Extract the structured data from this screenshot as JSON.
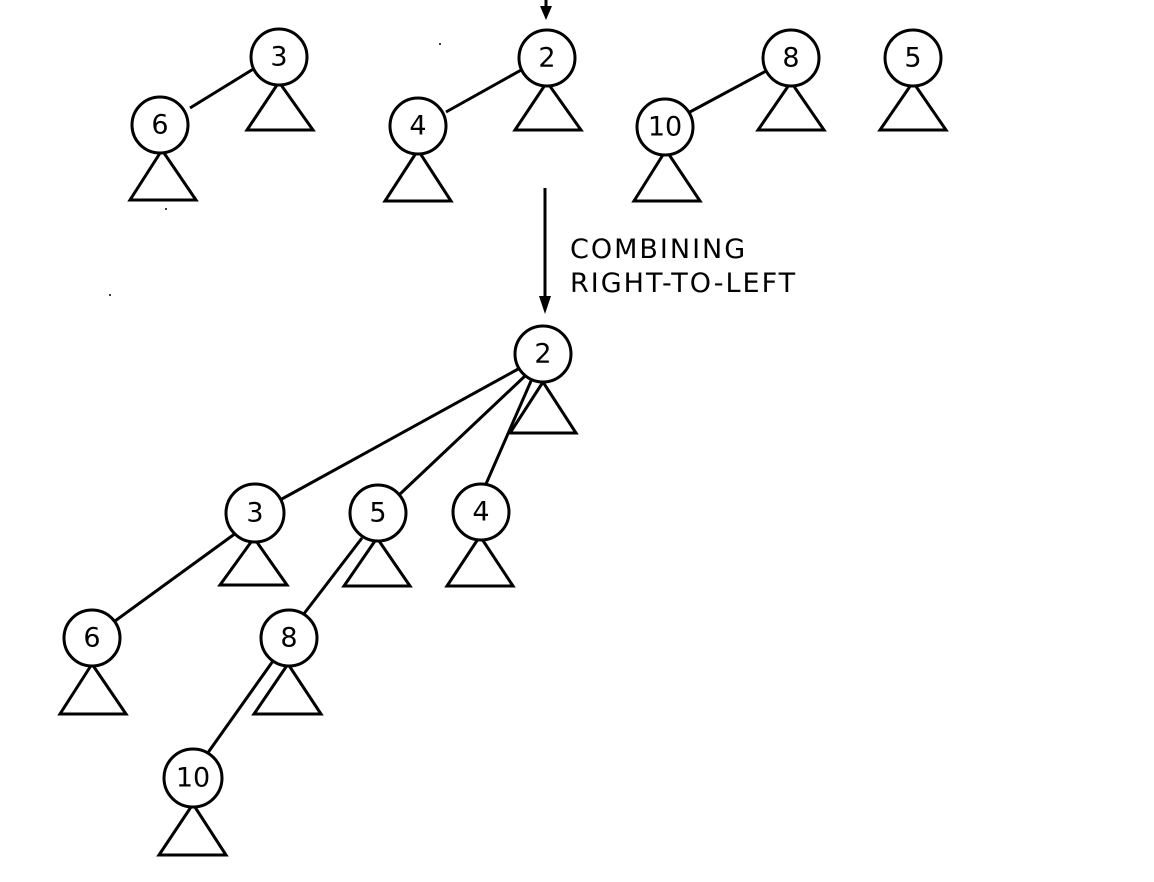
{
  "caption": {
    "line1": "COMBINING",
    "line2": "RIGHT-TO-LEFT"
  },
  "top_row": {
    "trees": [
      {
        "root": "3",
        "child": "6"
      },
      {
        "root": "2",
        "child": "4"
      },
      {
        "root": "8",
        "child": "10"
      },
      {
        "root": "5"
      }
    ]
  },
  "result_tree": {
    "root": "2",
    "children": [
      {
        "key": "3",
        "children": [
          {
            "key": "6"
          }
        ]
      },
      {
        "key": "5",
        "children": [
          {
            "key": "8",
            "children": [
              {
                "key": "10"
              }
            ]
          }
        ]
      },
      {
        "key": "4"
      }
    ]
  }
}
